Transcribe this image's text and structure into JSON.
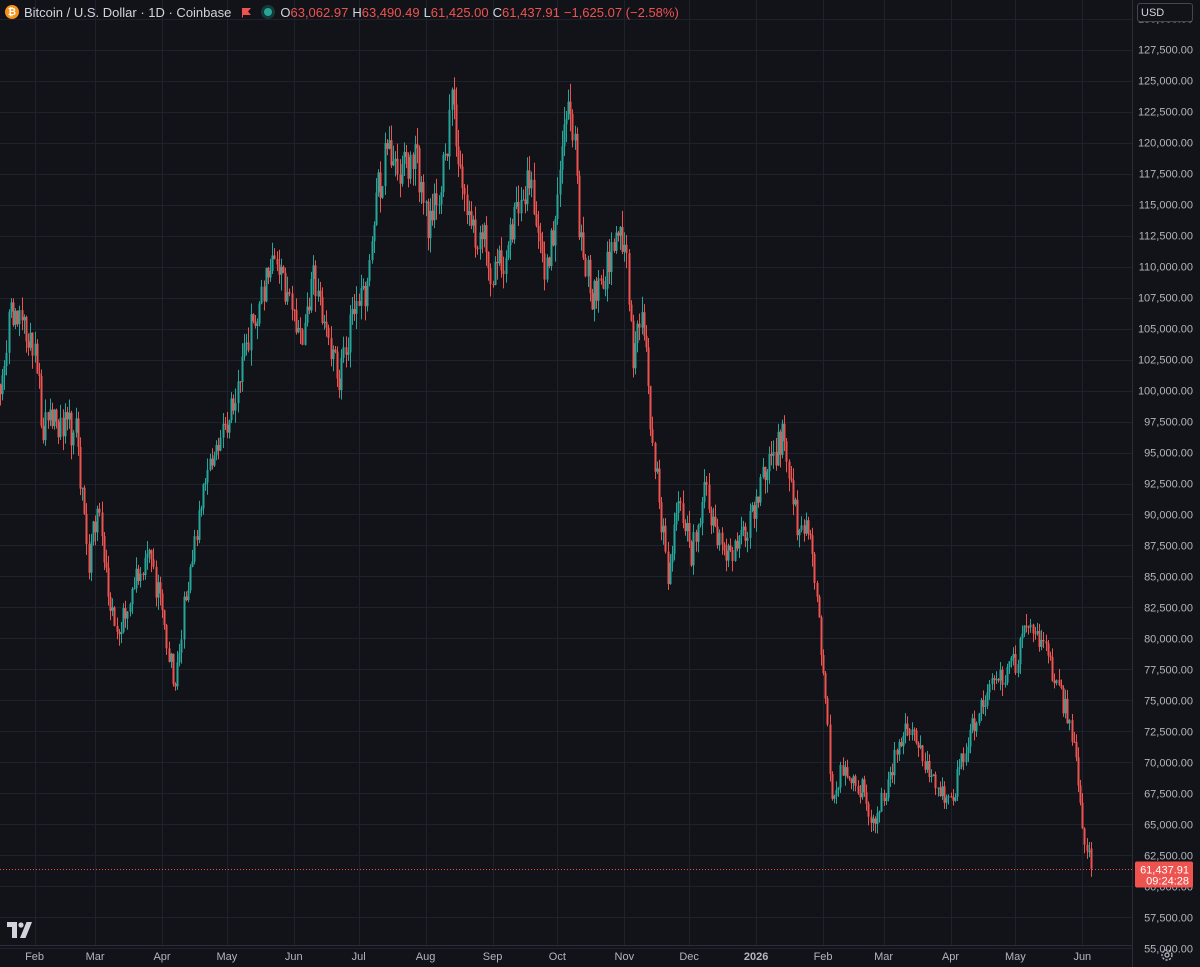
{
  "header": {
    "title": "Bitcoin / U.S. Dollar · 1D · Coinbase",
    "open_key": "O",
    "open": "63,062.97",
    "high_key": "H",
    "high": "63,490.49",
    "low_key": "L",
    "low": "61,425.00",
    "close_key": "C",
    "close": "61,437.91",
    "change": "−1,625.07 (−2.58%)"
  },
  "currency": "USD",
  "price_tag": {
    "price": "61,437.91",
    "countdown": "09:24:28"
  },
  "colors": {
    "up": "#26a69a",
    "down": "#ef5350",
    "background": "#121318",
    "grid": "#1e222d",
    "text": "#d1d4dc"
  },
  "icons": [
    "bitcoin-icon",
    "flag-icon",
    "status-dot-icon",
    "tradingview-logo",
    "settings-gear-icon"
  ],
  "chart_data": {
    "type": "candlestick",
    "title": "Bitcoin / U.S. Dollar · 1D · Coinbase",
    "ylim": [
      53500,
      131500
    ],
    "y_ticks": [
      "55,000.00",
      "57,500.00",
      "60,000.00",
      "62,500.00",
      "65,000.00",
      "67,500.00",
      "70,000.00",
      "72,500.00",
      "75,000.00",
      "77,500.00",
      "80,000.00",
      "82,500.00",
      "85,000.00",
      "87,500.00",
      "90,000.00",
      "92,500.00",
      "95,000.00",
      "97,500.00",
      "100,000.00",
      "102,500.00",
      "105,000.00",
      "107,500.00",
      "110,000.00",
      "112,500.00",
      "115,000.00",
      "117,500.00",
      "120,000.00",
      "122,500.00",
      "125,000.00",
      "127,500.00",
      "130,000.00"
    ],
    "x_ticks": [
      {
        "label": "Feb",
        "date": "2025-02-01"
      },
      {
        "label": "Mar",
        "date": "2025-03-01"
      },
      {
        "label": "Apr",
        "date": "2025-04-01"
      },
      {
        "label": "May",
        "date": "2025-05-01"
      },
      {
        "label": "Jun",
        "date": "2025-06-01"
      },
      {
        "label": "Jul",
        "date": "2025-07-01"
      },
      {
        "label": "Aug",
        "date": "2025-08-01"
      },
      {
        "label": "Sep",
        "date": "2025-09-01"
      },
      {
        "label": "Oct",
        "date": "2025-10-01"
      },
      {
        "label": "Nov",
        "date": "2025-11-01"
      },
      {
        "label": "Dec",
        "date": "2025-12-01"
      },
      {
        "label": "2026",
        "date": "2026-01-01",
        "bold": true
      },
      {
        "label": "Feb",
        "date": "2026-02-01"
      },
      {
        "label": "Mar",
        "date": "2026-03-01"
      },
      {
        "label": "Apr",
        "date": "2026-04-01"
      },
      {
        "label": "May",
        "date": "2026-05-01"
      },
      {
        "label": "Jun",
        "date": "2026-06-01"
      }
    ],
    "x_range": [
      "2025-01-16",
      "2026-06-24"
    ],
    "grid": true,
    "last_price": 61437.91,
    "close_path": [
      [
        "2025-01-16",
        100500
      ],
      [
        "2025-01-21",
        106000
      ],
      [
        "2025-01-31",
        104000
      ],
      [
        "2025-02-05",
        97000
      ],
      [
        "2025-02-15",
        97500
      ],
      [
        "2025-02-20",
        96500
      ],
      [
        "2025-02-26",
        86000
      ],
      [
        "2025-03-02",
        91000
      ],
      [
        "2025-03-10",
        80000
      ],
      [
        "2025-03-20",
        85000
      ],
      [
        "2025-03-26",
        87000
      ],
      [
        "2025-03-31",
        82500
      ],
      [
        "2025-04-07",
        76500
      ],
      [
        "2025-04-12",
        84000
      ],
      [
        "2025-04-22",
        93500
      ],
      [
        "2025-04-26",
        94500
      ],
      [
        "2025-05-10",
        103500
      ],
      [
        "2025-05-22",
        111000
      ],
      [
        "2025-06-01",
        105500
      ],
      [
        "2025-06-05",
        103000
      ],
      [
        "2025-06-10",
        109500
      ],
      [
        "2025-06-17",
        104000
      ],
      [
        "2025-06-22",
        101000
      ],
      [
        "2025-06-30",
        107500
      ],
      [
        "2025-07-05",
        108500
      ],
      [
        "2025-07-10",
        116000
      ],
      [
        "2025-07-14",
        119500
      ],
      [
        "2025-07-20",
        118000
      ],
      [
        "2025-07-28",
        118500
      ],
      [
        "2025-08-02",
        113000
      ],
      [
        "2025-08-08",
        116500
      ],
      [
        "2025-08-13",
        123000
      ],
      [
        "2025-08-20",
        114000
      ],
      [
        "2025-08-28",
        112000
      ],
      [
        "2025-09-01",
        109000
      ],
      [
        "2025-09-06",
        110500
      ],
      [
        "2025-09-14",
        116000
      ],
      [
        "2025-09-18",
        117000
      ],
      [
        "2025-09-25",
        109500
      ],
      [
        "2025-09-30",
        114000
      ],
      [
        "2025-10-05",
        123500
      ],
      [
        "2025-10-09",
        121000
      ],
      [
        "2025-10-11",
        112500
      ],
      [
        "2025-10-17",
        107500
      ],
      [
        "2025-10-22",
        108000
      ],
      [
        "2025-10-28",
        113500
      ],
      [
        "2025-11-02",
        110500
      ],
      [
        "2025-11-05",
        103000
      ],
      [
        "2025-11-10",
        105500
      ],
      [
        "2025-11-14",
        95500
      ],
      [
        "2025-11-21",
        85000
      ],
      [
        "2025-11-26",
        91000
      ],
      [
        "2025-12-02",
        87000
      ],
      [
        "2025-12-08",
        92000
      ],
      [
        "2025-12-14",
        88000
      ],
      [
        "2025-12-18",
        86500
      ],
      [
        "2025-12-26",
        88000
      ],
      [
        "2026-01-05",
        93500
      ],
      [
        "2026-01-14",
        96500
      ],
      [
        "2026-01-20",
        89500
      ],
      [
        "2026-01-26",
        88000
      ],
      [
        "2026-02-01",
        77500
      ],
      [
        "2026-02-05",
        67000
      ],
      [
        "2026-02-10",
        69500
      ],
      [
        "2026-02-20",
        67500
      ],
      [
        "2026-02-25",
        65000
      ],
      [
        "2026-03-02",
        68000
      ],
      [
        "2026-03-07",
        71000
      ],
      [
        "2026-03-12",
        73500
      ],
      [
        "2026-03-18",
        70500
      ],
      [
        "2026-03-26",
        67500
      ],
      [
        "2026-04-01",
        66500
      ],
      [
        "2026-04-08",
        71500
      ],
      [
        "2026-04-15",
        75000
      ],
      [
        "2026-04-22",
        77000
      ],
      [
        "2026-05-01",
        78000
      ],
      [
        "2026-05-08",
        82000
      ],
      [
        "2026-05-13",
        79500
      ],
      [
        "2026-05-18",
        77500
      ],
      [
        "2026-05-25",
        74000
      ],
      [
        "2026-05-29",
        70000
      ],
      [
        "2026-06-01",
        64000
      ],
      [
        "2026-06-05",
        61438
      ]
    ]
  }
}
